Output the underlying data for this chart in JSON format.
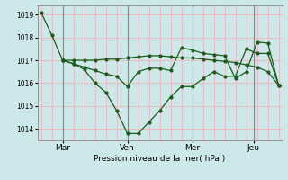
{
  "background_color": "#cce8e8",
  "grid_color": "#e8b8b8",
  "line_color": "#1a5c1a",
  "marker_color": "#1a5c1a",
  "vline_color": "#888888",
  "ylabel": "Pression niveau de la mer( hPa )",
  "ylim": [
    1013.5,
    1019.4
  ],
  "yticks": [
    1014,
    1015,
    1016,
    1017,
    1018,
    1019
  ],
  "day_labels": [
    "Mar",
    "Ven",
    "Mer",
    "Jeu"
  ],
  "day_positions": [
    12,
    48,
    84,
    118
  ],
  "vline_x": [
    12,
    48,
    84,
    118
  ],
  "line1_x": [
    0,
    6,
    12,
    18,
    24,
    30,
    36,
    42,
    48,
    54,
    60,
    66,
    72,
    78,
    84,
    90,
    96,
    102,
    108,
    114,
    120,
    126,
    132
  ],
  "line1_y": [
    1019.1,
    1018.1,
    1017.0,
    1016.85,
    1016.6,
    1016.0,
    1015.6,
    1014.8,
    1013.8,
    1013.8,
    1014.3,
    1014.8,
    1015.4,
    1015.85,
    1015.85,
    1016.2,
    1016.5,
    1016.3,
    1016.3,
    1017.5,
    1017.3,
    1017.3,
    1015.9
  ],
  "line2_x": [
    12,
    18,
    24,
    30,
    36,
    42,
    48,
    54,
    60,
    66,
    72,
    78,
    84,
    90,
    96,
    102,
    108,
    114,
    120,
    126,
    132
  ],
  "line2_y": [
    1017.0,
    1017.0,
    1017.0,
    1017.0,
    1017.05,
    1017.05,
    1017.1,
    1017.15,
    1017.2,
    1017.2,
    1017.15,
    1017.1,
    1017.1,
    1017.05,
    1017.0,
    1016.95,
    1016.9,
    1016.8,
    1016.7,
    1016.5,
    1015.9
  ],
  "line3_x": [
    12,
    18,
    24,
    30,
    36,
    42,
    48,
    54,
    60,
    66,
    72,
    78,
    84,
    90,
    96,
    102,
    108,
    114,
    120,
    126,
    132
  ],
  "line3_y": [
    1017.0,
    1016.85,
    1016.7,
    1016.55,
    1016.4,
    1016.3,
    1015.85,
    1016.5,
    1016.65,
    1016.65,
    1016.55,
    1017.55,
    1017.45,
    1017.3,
    1017.25,
    1017.2,
    1016.2,
    1016.5,
    1017.8,
    1017.75,
    1015.9
  ],
  "figsize": [
    3.2,
    2.0
  ],
  "dpi": 100
}
